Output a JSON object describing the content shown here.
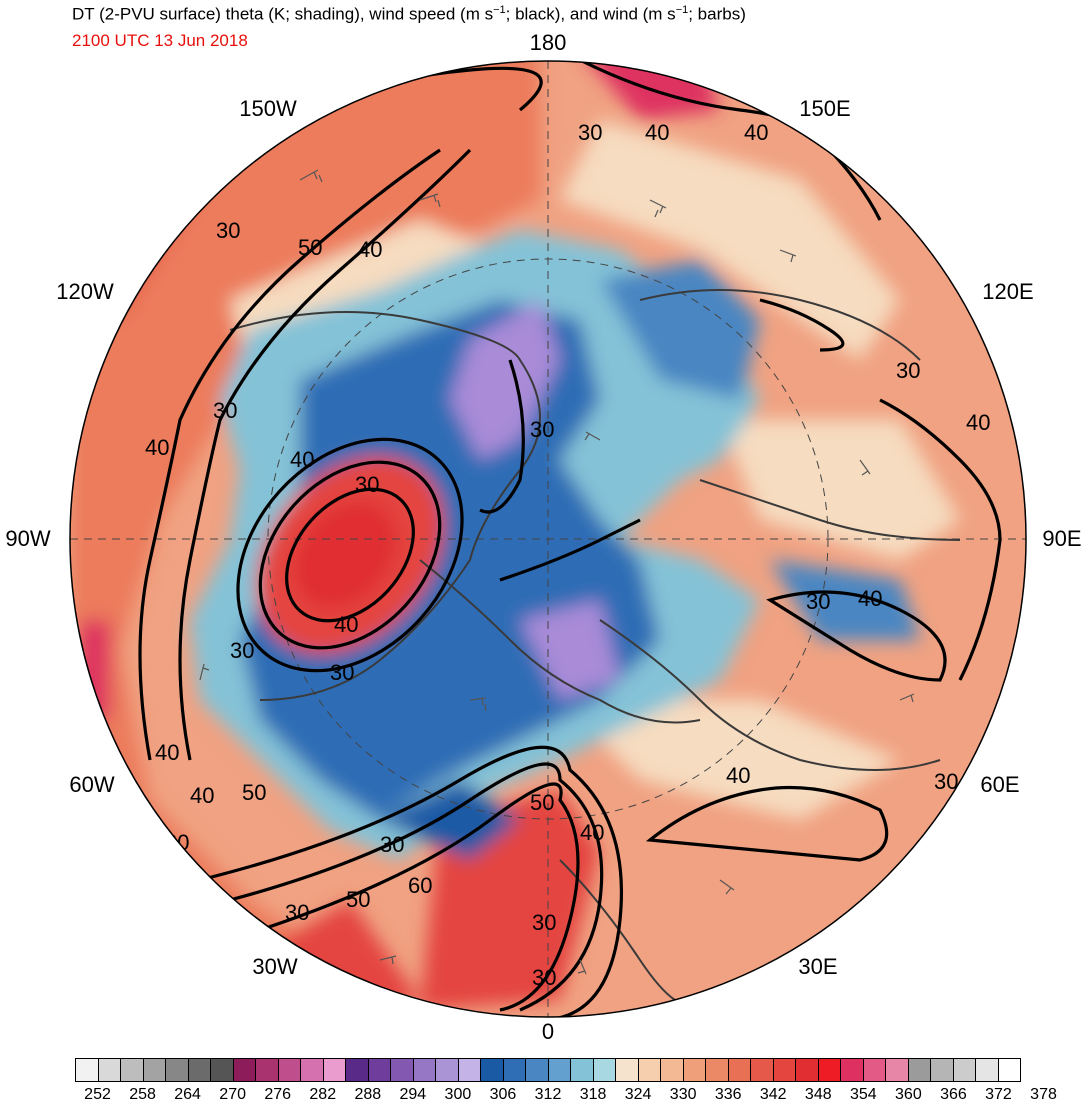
{
  "header": {
    "title_html": "DT (2-PVU surface) theta (K; shading), wind speed (m s<sup>−1</sup>; black), and wind (m s<sup>−1</sup>; barbs)",
    "valid_time": "2100 UTC 13 Jun 2018"
  },
  "map": {
    "projection": "north-polar-stereographic",
    "lon_labels": {
      "n180": "180",
      "w150": "150W",
      "e150": "150E",
      "w120": "120W",
      "e120": "120E",
      "w90": "90W",
      "e90": "90E",
      "w60": "60W",
      "e60": "60E",
      "w30": "30W",
      "e30": "30E",
      "s0": "0"
    },
    "contour_labels": [
      "30",
      "40",
      "50",
      "60"
    ],
    "colors": {
      "cold_blue": "#2f6db5",
      "mid_blue": "#84c2d7",
      "light_blue": "#b9dfe8",
      "cream": "#f6dcc0",
      "warm": "#ef9f7c",
      "hot": "#e5463e",
      "violet": "#a98bd8"
    }
  },
  "colorbar": {
    "colors": [
      "#f2f2f2",
      "#d9d9d9",
      "#bdbdbd",
      "#a3a3a3",
      "#878787",
      "#6b6b6b",
      "#555555",
      "#8c1d5a",
      "#a8336f",
      "#be4f8c",
      "#d471ae",
      "#ea9ccf",
      "#5a2a88",
      "#6f3e9d",
      "#8258b1",
      "#9677c6",
      "#ab94d6",
      "#c3b3e6",
      "#1a5aa5",
      "#2f6db5",
      "#4a86c2",
      "#63a0cf",
      "#84c2d7",
      "#a8d8e2",
      "#f6e3cd",
      "#f6cfae",
      "#f3b894",
      "#efa07b",
      "#eb8866",
      "#e77055",
      "#e5594a",
      "#e4453f",
      "#e02e33",
      "#ee1c24",
      "#de3161",
      "#e25a85",
      "#e886a8",
      "#9b9b9b",
      "#b5b5b5",
      "#cccccc",
      "#e5e5e5",
      "#ffffff"
    ],
    "ticks": [
      "252",
      "258",
      "264",
      "270",
      "276",
      "282",
      "288",
      "294",
      "300",
      "306",
      "312",
      "318",
      "324",
      "330",
      "336",
      "342",
      "348",
      "354",
      "360",
      "366",
      "372",
      "378"
    ]
  }
}
